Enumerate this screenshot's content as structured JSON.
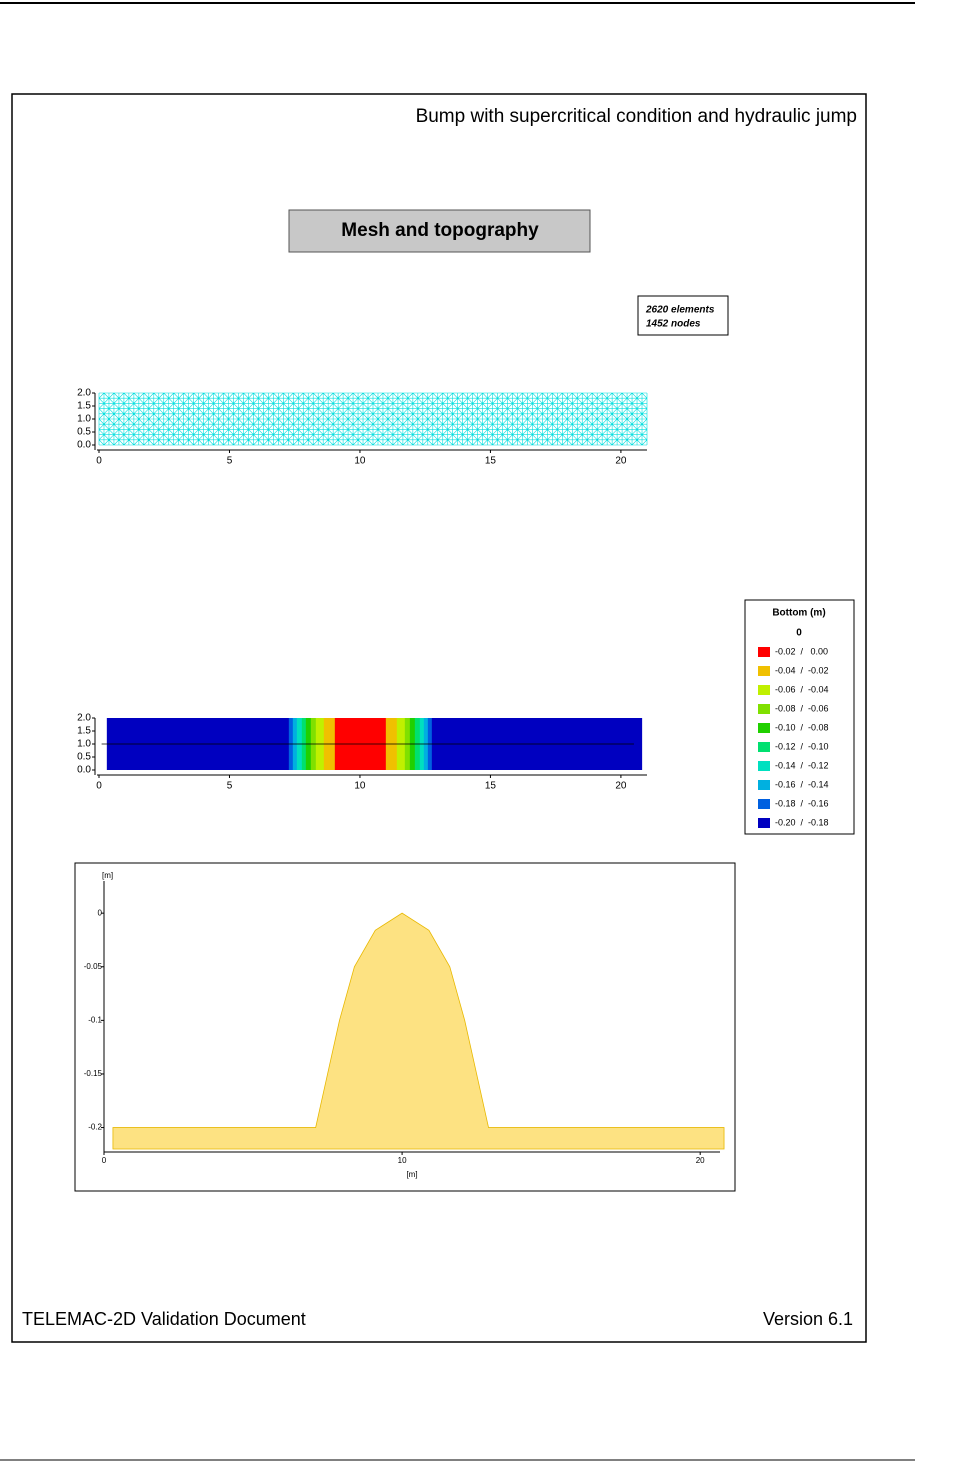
{
  "header": {
    "title": "Bump with supercritical condition and hydraulic jump",
    "section": "Mesh and topography"
  },
  "mesh_info": {
    "elements": "2620 elements",
    "nodes": "1452 nodes"
  },
  "mesh_plot": {
    "xlim": [
      0,
      21
    ],
    "ylim": [
      0,
      2
    ],
    "color": "#00dede",
    "xticks": [
      0,
      5,
      10,
      15,
      20
    ],
    "yticks": [
      {
        "value": 0,
        "label": "0.0"
      },
      {
        "value": 0.5,
        "label": "0.5"
      },
      {
        "value": 1,
        "label": "1.0"
      },
      {
        "value": 1.5,
        "label": "1.5"
      },
      {
        "value": 2,
        "label": "2.0"
      }
    ]
  },
  "bottom_plot": {
    "xlim": [
      0,
      21
    ],
    "ylim": [
      0,
      2
    ],
    "xticks": [
      0,
      5,
      10,
      15,
      20
    ],
    "yticks": [
      {
        "value": 0,
        "label": "0.0"
      },
      {
        "value": 0.5,
        "label": "0.5"
      },
      {
        "value": 1,
        "label": "1.0"
      },
      {
        "value": 1.5,
        "label": "1.5"
      },
      {
        "value": 2,
        "label": "2.0"
      }
    ],
    "cut_line": {
      "x": [
        0.1,
        20.5
      ],
      "y": 1
    },
    "legend": {
      "title": "Bottom (m)",
      "level": "0",
      "classes": [
        {
          "low": -0.02,
          "high": 0,
          "label": "-0.02  /   0.00",
          "color": "#ff0000"
        },
        {
          "low": -0.04,
          "high": -0.02,
          "label": "-0.04  /  -0.02",
          "color": "#f0c000"
        },
        {
          "low": -0.06,
          "high": -0.04,
          "label": "-0.06  /  -0.04",
          "color": "#c0f000"
        },
        {
          "low": -0.08,
          "high": -0.06,
          "label": "-0.08  /  -0.06",
          "color": "#80e000"
        },
        {
          "low": -0.1,
          "high": -0.08,
          "label": "-0.10  /  -0.08",
          "color": "#20d000"
        },
        {
          "low": -0.12,
          "high": -0.1,
          "label": "-0.12  /  -0.10",
          "color": "#00e070"
        },
        {
          "low": -0.14,
          "high": -0.12,
          "label": "-0.14  /  -0.12",
          "color": "#00e0c0"
        },
        {
          "low": -0.16,
          "high": -0.14,
          "label": "-0.16  /  -0.14",
          "color": "#00b0e0"
        },
        {
          "low": -0.18,
          "high": -0.16,
          "label": "-0.18  /  -0.16",
          "color": "#0060e0"
        },
        {
          "low": -0.2,
          "high": -0.18,
          "label": "-0.20  /  -0.18",
          "color": "#0000c0"
        }
      ]
    }
  },
  "profile": {
    "type": "area",
    "x_label": "[m]",
    "y_label": "[m]",
    "color": "#fde282",
    "edge": "#e8b800",
    "x": [
      0.3,
      7.1,
      7.5,
      7.9,
      8.4,
      9.1,
      10,
      10.9,
      11.6,
      12.1,
      12.5,
      12.9,
      20.8
    ],
    "values": [
      -0.2,
      -0.2,
      -0.15,
      -0.1,
      -0.05,
      -0.016,
      0,
      -0.016,
      -0.05,
      -0.1,
      -0.15,
      -0.2,
      -0.2
    ],
    "xlim": [
      0,
      21
    ],
    "ylim": [
      -0.22,
      0.03
    ],
    "xticks": [
      0,
      10,
      20
    ],
    "yticks": [
      0,
      -0.05,
      -0.1,
      -0.15,
      -0.2
    ]
  },
  "footer": {
    "left": "TELEMAC-2D Validation Document",
    "right": "Version 6.1"
  }
}
